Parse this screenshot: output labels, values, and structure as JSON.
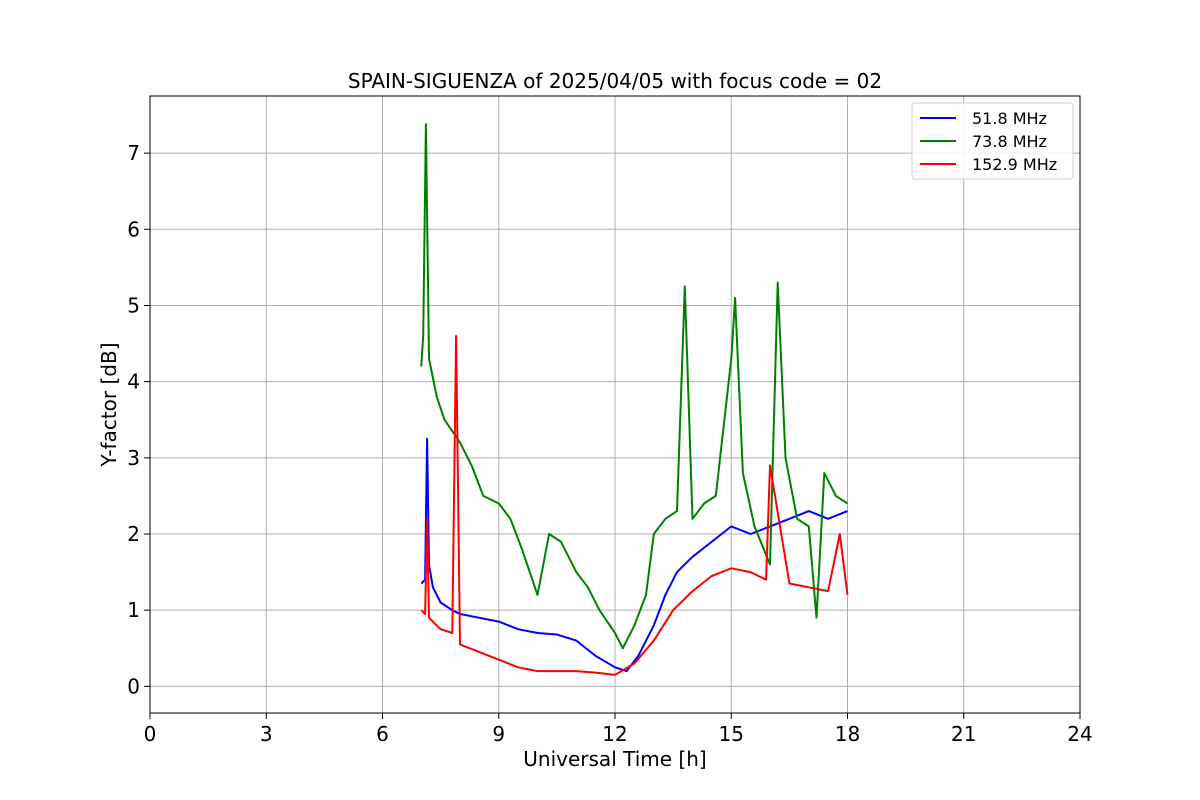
{
  "chart_data": {
    "type": "line",
    "title": "SPAIN-SIGUENZA of 2025/04/05 with focus code = 02",
    "xlabel": "Universal Time [h]",
    "ylabel": "Y-factor [dB]",
    "xlim": [
      0,
      24
    ],
    "ylim": [
      -0.35,
      7.75
    ],
    "xticks": [
      0,
      3,
      6,
      9,
      12,
      15,
      18,
      21,
      24
    ],
    "yticks": [
      0,
      1,
      2,
      3,
      4,
      5,
      6,
      7
    ],
    "grid": true,
    "legend_position": "top-right",
    "series": [
      {
        "name": "51.8 MHz",
        "color": "#0000ff",
        "x": [
          7.0,
          7.1,
          7.15,
          7.2,
          7.3,
          7.5,
          7.8,
          8.0,
          8.5,
          9.0,
          9.5,
          10.0,
          10.5,
          11.0,
          11.5,
          12.0,
          12.3,
          12.6,
          13.0,
          13.3,
          13.6,
          14.0,
          14.5,
          15.0,
          15.5,
          16.0,
          16.5,
          17.0,
          17.5,
          18.0
        ],
        "y": [
          1.35,
          1.4,
          3.25,
          1.6,
          1.3,
          1.1,
          1.0,
          0.95,
          0.9,
          0.85,
          0.75,
          0.7,
          0.68,
          0.6,
          0.4,
          0.25,
          0.2,
          0.4,
          0.8,
          1.2,
          1.5,
          1.7,
          1.9,
          2.1,
          2.0,
          2.1,
          2.2,
          2.3,
          2.2,
          2.3
        ]
      },
      {
        "name": "73.8 MHz",
        "color": "#008000",
        "x": [
          7.0,
          7.05,
          7.12,
          7.2,
          7.4,
          7.6,
          8.0,
          8.3,
          8.6,
          9.0,
          9.3,
          9.6,
          10.0,
          10.3,
          10.6,
          11.0,
          11.3,
          11.6,
          12.0,
          12.2,
          12.5,
          12.8,
          13.0,
          13.3,
          13.6,
          13.8,
          14.0,
          14.3,
          14.6,
          15.0,
          15.1,
          15.3,
          15.6,
          16.0,
          16.2,
          16.4,
          16.7,
          17.0,
          17.2,
          17.4,
          17.7,
          18.0
        ],
        "y": [
          4.2,
          4.6,
          7.38,
          4.3,
          3.8,
          3.5,
          3.2,
          2.9,
          2.5,
          2.4,
          2.2,
          1.8,
          1.2,
          2.0,
          1.9,
          1.5,
          1.3,
          1.0,
          0.7,
          0.5,
          0.8,
          1.2,
          2.0,
          2.2,
          2.3,
          5.25,
          2.2,
          2.4,
          2.5,
          4.3,
          5.1,
          2.8,
          2.1,
          1.6,
          5.3,
          3.0,
          2.2,
          2.1,
          0.9,
          2.8,
          2.5,
          2.4
        ]
      },
      {
        "name": "152.9 MHz",
        "color": "#ff0000",
        "x": [
          7.0,
          7.1,
          7.15,
          7.2,
          7.5,
          7.8,
          7.9,
          8.0,
          8.5,
          9.0,
          9.5,
          10.0,
          10.5,
          11.0,
          11.5,
          12.0,
          12.5,
          13.0,
          13.5,
          14.0,
          14.5,
          15.0,
          15.5,
          15.9,
          16.0,
          16.5,
          17.0,
          17.5,
          17.8,
          18.0
        ],
        "y": [
          1.0,
          0.95,
          2.2,
          0.9,
          0.75,
          0.7,
          4.6,
          0.55,
          0.45,
          0.35,
          0.25,
          0.2,
          0.2,
          0.2,
          0.18,
          0.15,
          0.3,
          0.6,
          1.0,
          1.25,
          1.45,
          1.55,
          1.5,
          1.4,
          2.9,
          1.35,
          1.3,
          1.25,
          2.0,
          1.2
        ]
      }
    ]
  }
}
